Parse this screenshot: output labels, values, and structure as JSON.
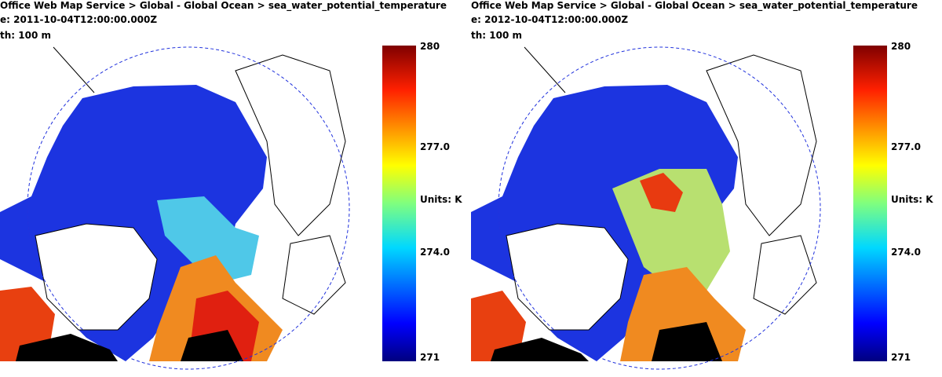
{
  "panels": [
    {
      "header": [
        "Office Web Map Service > Global - Global Ocean > sea_water_potential_temperature",
        "e: 2011-10-04T12:00:00.000Z",
        "th: 100 m"
      ],
      "colorbar": {
        "labels": [
          "280",
          "277.0",
          "Units: K",
          "274.0",
          "271"
        ]
      }
    },
    {
      "header": [
        "Office Web Map Service > Global - Global Ocean > sea_water_potential_temperature",
        "e: 2012-10-04T12:00:00.000Z",
        "th: 100 m"
      ],
      "colorbar": {
        "labels": [
          "280",
          "277.0",
          "Units: K",
          "274.0",
          "271"
        ]
      }
    }
  ]
}
